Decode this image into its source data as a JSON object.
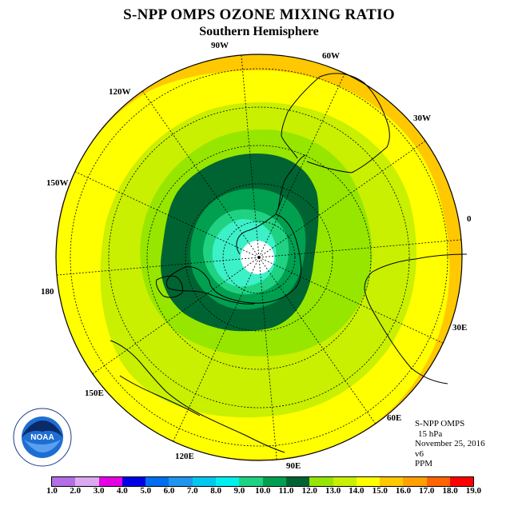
{
  "title": "S-NPP OMPS OZONE MIXING RATIO",
  "subtitle": "Southern Hemisphere",
  "map_labels": {
    "lon_90w": "90W",
    "lon_60w": "60W",
    "lon_30w": "30W",
    "lon_0": "0",
    "lon_30e": "30E",
    "lon_60e": "60E",
    "lon_90e": "90E",
    "lon_120e": "120E",
    "lon_150e": "150E",
    "lon_180": "180",
    "lon_150w": "150W",
    "lon_120w": "120W"
  },
  "info": {
    "instrument": "S-NPP OMPS",
    "level": "15 hPa",
    "date": "November 25, 2016",
    "version": "v6",
    "units": "PPM"
  },
  "logo": {
    "text": "NOAA",
    "ring_text": "NATIONAL OCEANIC AND ATMOSPHERIC ADMINISTRATION U.S. DEPARTMENT OF COMMERCE"
  },
  "colorbar": {
    "ticks": [
      "1.0",
      "2.0",
      "3.0",
      "4.0",
      "5.0",
      "6.0",
      "7.0",
      "8.0",
      "9.0",
      "10.0",
      "11.0",
      "12.0",
      "13.0",
      "14.0",
      "15.0",
      "16.0",
      "17.0",
      "18.0",
      "19.0"
    ],
    "colors": [
      "#b46ee6",
      "#dcaaf0",
      "#e600e6",
      "#0000e6",
      "#006ef0",
      "#1e96f0",
      "#00c8f0",
      "#00f0f0",
      "#1ed282",
      "#00a050",
      "#006432",
      "#96e600",
      "#c8f000",
      "#ffff00",
      "#ffc800",
      "#ffa000",
      "#ff6400",
      "#ff0000",
      "#966432"
    ]
  },
  "field": {
    "outer_ring": "#ffc800",
    "band_14": "#ffff00",
    "band_13": "#c8f000",
    "band_12": "#96e600",
    "band_11": "#006432",
    "band_10": "#00a050",
    "band_9": "#1ed282",
    "band_8": "#3cf0c8",
    "pole": "#ffffff"
  }
}
